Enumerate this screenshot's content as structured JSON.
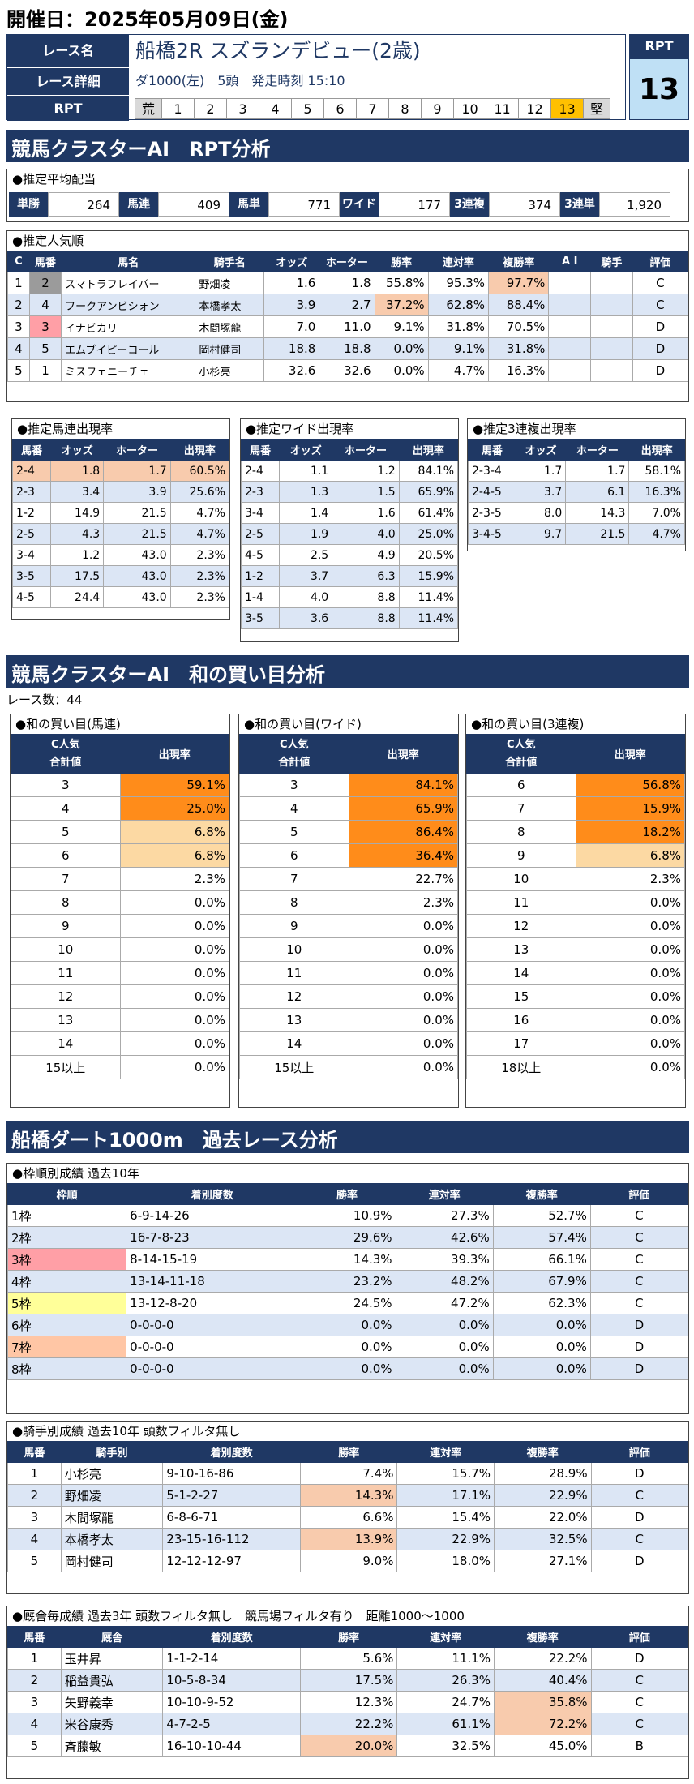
{
  "date_title": "開催日：2025年05月09日(金)",
  "race": {
    "label_name": "レース名",
    "name": "船橋2R スズランデビュー(2歳)",
    "label_detail": "レース詳細",
    "detail": "ダ1000(左)　5頭　発走時刻 15:10",
    "label_rpt": "RPT",
    "rpt_scale": [
      "荒",
      "1",
      "2",
      "3",
      "4",
      "5",
      "6",
      "7",
      "8",
      "9",
      "10",
      "11",
      "12",
      "13",
      "堅"
    ],
    "rpt_label": "RPT",
    "rpt_value": "13"
  },
  "section1": {
    "title": "競馬クラスターAI　RPT分析"
  },
  "payout": {
    "title": "●推定平均配当",
    "items": [
      {
        "k": "単勝",
        "v": "264"
      },
      {
        "k": "馬連",
        "v": "409"
      },
      {
        "k": "馬単",
        "v": "771"
      },
      {
        "k": "ワイド",
        "v": "177"
      },
      {
        "k": "3連複",
        "v": "374"
      },
      {
        "k": "3連単",
        "v": "1,920"
      }
    ]
  },
  "popularity": {
    "title": "●推定人気順",
    "headers": [
      "C",
      "馬番",
      "馬名",
      "騎手名",
      "オッズ",
      "ホーター",
      "勝率",
      "連対率",
      "複勝率",
      "A I",
      "騎手",
      "評価"
    ],
    "rows": [
      [
        "1",
        "2",
        "スマトラフレイバー",
        "野畑凌",
        "1.6",
        "1.8",
        "55.8%",
        "95.3%",
        "97.7%",
        "",
        "",
        "C"
      ],
      [
        "2",
        "4",
        "フークアンビシォン",
        "本橋孝太",
        "3.9",
        "2.7",
        "37.2%",
        "62.8%",
        "88.4%",
        "",
        "",
        "C"
      ],
      [
        "3",
        "3",
        "イナビカリ",
        "木間塚龍",
        "7.0",
        "11.0",
        "9.1%",
        "31.8%",
        "70.5%",
        "",
        "",
        "D"
      ],
      [
        "4",
        "5",
        "エムブイピーコール",
        "岡村健司",
        "18.8",
        "18.8",
        "0.0%",
        "9.1%",
        "31.8%",
        "",
        "",
        "D"
      ],
      [
        "5",
        "1",
        "ミスフェニーチェ",
        "小杉亮",
        "32.6",
        "32.6",
        "0.0%",
        "4.7%",
        "16.3%",
        "",
        "",
        "D"
      ]
    ]
  },
  "umaren": {
    "title": "●推定馬連出現率",
    "headers": [
      "馬番",
      "オッズ",
      "ホーター",
      "出現率"
    ],
    "rows": [
      [
        "2-4",
        "1.8",
        "1.7",
        "60.5%"
      ],
      [
        "2-3",
        "3.4",
        "3.9",
        "25.6%"
      ],
      [
        "1-2",
        "14.9",
        "21.5",
        "4.7%"
      ],
      [
        "2-5",
        "4.3",
        "21.5",
        "4.7%"
      ],
      [
        "3-4",
        "1.2",
        "43.0",
        "2.3%"
      ],
      [
        "3-5",
        "17.5",
        "43.0",
        "2.3%"
      ],
      [
        "4-5",
        "24.4",
        "43.0",
        "2.3%"
      ]
    ]
  },
  "wide": {
    "title": "●推定ワイド出現率",
    "headers": [
      "馬番",
      "オッズ",
      "ホーター",
      "出現率"
    ],
    "rows": [
      [
        "2-4",
        "1.1",
        "1.2",
        "84.1%"
      ],
      [
        "2-3",
        "1.3",
        "1.5",
        "65.9%"
      ],
      [
        "3-4",
        "1.4",
        "1.6",
        "61.4%"
      ],
      [
        "2-5",
        "1.9",
        "4.0",
        "25.0%"
      ],
      [
        "4-5",
        "2.5",
        "4.9",
        "20.5%"
      ],
      [
        "1-2",
        "3.7",
        "6.3",
        "15.9%"
      ],
      [
        "1-4",
        "4.0",
        "8.8",
        "11.4%"
      ],
      [
        "3-5",
        "3.6",
        "8.8",
        "11.4%"
      ]
    ]
  },
  "trio": {
    "title": "●推定3連複出現率",
    "headers": [
      "馬番",
      "オッズ",
      "ホーター",
      "出現率"
    ],
    "rows": [
      [
        "2-3-4",
        "1.7",
        "1.7",
        "58.1%"
      ],
      [
        "2-4-5",
        "3.7",
        "6.1",
        "16.3%"
      ],
      [
        "2-3-5",
        "8.0",
        "14.3",
        "7.0%"
      ],
      [
        "3-4-5",
        "9.7",
        "21.5",
        "4.7%"
      ]
    ]
  },
  "section2": {
    "title": "競馬クラスターAI　和の買い目分析",
    "race_count": "レース数：44"
  },
  "sum_umaren": {
    "title": "●和の買い目(馬連)",
    "h1": "C人気",
    "h2": "合計値",
    "h3": "出現率",
    "rows": [
      [
        "3",
        "59.1%"
      ],
      [
        "4",
        "25.0%"
      ],
      [
        "5",
        "6.8%"
      ],
      [
        "6",
        "6.8%"
      ],
      [
        "7",
        "2.3%"
      ],
      [
        "8",
        "0.0%"
      ],
      [
        "9",
        "0.0%"
      ],
      [
        "10",
        "0.0%"
      ],
      [
        "11",
        "0.0%"
      ],
      [
        "12",
        "0.0%"
      ],
      [
        "13",
        "0.0%"
      ],
      [
        "14",
        "0.0%"
      ],
      [
        "15以上",
        "0.0%"
      ]
    ]
  },
  "sum_wide": {
    "title": "●和の買い目(ワイド)",
    "h1": "C人気",
    "h2": "合計値",
    "h3": "出現率",
    "rows": [
      [
        "3",
        "84.1%"
      ],
      [
        "4",
        "65.9%"
      ],
      [
        "5",
        "86.4%"
      ],
      [
        "6",
        "36.4%"
      ],
      [
        "7",
        "22.7%"
      ],
      [
        "8",
        "2.3%"
      ],
      [
        "9",
        "0.0%"
      ],
      [
        "10",
        "0.0%"
      ],
      [
        "11",
        "0.0%"
      ],
      [
        "12",
        "0.0%"
      ],
      [
        "13",
        "0.0%"
      ],
      [
        "14",
        "0.0%"
      ],
      [
        "15以上",
        "0.0%"
      ]
    ]
  },
  "sum_trio": {
    "title": "●和の買い目(3連複)",
    "h1": "C人気",
    "h2": "合計値",
    "h3": "出現率",
    "rows": [
      [
        "6",
        "56.8%"
      ],
      [
        "7",
        "15.9%"
      ],
      [
        "8",
        "18.2%"
      ],
      [
        "9",
        "6.8%"
      ],
      [
        "10",
        "2.3%"
      ],
      [
        "11",
        "0.0%"
      ],
      [
        "12",
        "0.0%"
      ],
      [
        "13",
        "0.0%"
      ],
      [
        "14",
        "0.0%"
      ],
      [
        "15",
        "0.0%"
      ],
      [
        "16",
        "0.0%"
      ],
      [
        "17",
        "0.0%"
      ],
      [
        "18以上",
        "0.0%"
      ]
    ]
  },
  "section3": {
    "title": "船橋ダート1000m　過去レース分析"
  },
  "waku": {
    "title": "●枠順別成績 過去10年",
    "headers": [
      "枠順",
      "着別度数",
      "勝率",
      "連対率",
      "複勝率",
      "評価"
    ],
    "rows": [
      [
        "1枠",
        "6-9-14-26",
        "10.9%",
        "27.3%",
        "52.7%",
        "C"
      ],
      [
        "2枠",
        "16-7-8-23",
        "29.6%",
        "42.6%",
        "57.4%",
        "C"
      ],
      [
        "3枠",
        "8-14-15-19",
        "14.3%",
        "39.3%",
        "66.1%",
        "C"
      ],
      [
        "4枠",
        "13-14-11-18",
        "23.2%",
        "48.2%",
        "67.9%",
        "C"
      ],
      [
        "5枠",
        "13-12-8-20",
        "24.5%",
        "47.2%",
        "62.3%",
        "C"
      ],
      [
        "6枠",
        "0-0-0-0",
        "0.0%",
        "0.0%",
        "0.0%",
        "D"
      ],
      [
        "7枠",
        "0-0-0-0",
        "0.0%",
        "0.0%",
        "0.0%",
        "D"
      ],
      [
        "8枠",
        "0-0-0-0",
        "0.0%",
        "0.0%",
        "0.0%",
        "D"
      ]
    ]
  },
  "jockey": {
    "title": "●騎手別成績 過去10年 頭数フィルタ無し",
    "headers": [
      "馬番",
      "騎手別",
      "着別度数",
      "勝率",
      "連対率",
      "複勝率",
      "評価"
    ],
    "rows": [
      [
        "1",
        "小杉亮",
        "9-10-16-86",
        "7.4%",
        "15.7%",
        "28.9%",
        "D"
      ],
      [
        "2",
        "野畑凌",
        "5-1-2-27",
        "14.3%",
        "17.1%",
        "22.9%",
        "C"
      ],
      [
        "3",
        "木間塚龍",
        "6-8-6-71",
        "6.6%",
        "15.4%",
        "22.0%",
        "D"
      ],
      [
        "4",
        "本橋孝太",
        "23-15-16-112",
        "13.9%",
        "22.9%",
        "32.5%",
        "C"
      ],
      [
        "5",
        "岡村健司",
        "12-12-12-97",
        "9.0%",
        "18.0%",
        "27.1%",
        "D"
      ]
    ]
  },
  "trainer": {
    "title": "●厩舎毎成績 過去3年 頭数フィルタ無し　競馬場フィルタ有り　距離1000～1000",
    "headers": [
      "馬番",
      "厩舎",
      "着別度数",
      "勝率",
      "連対率",
      "複勝率",
      "評価"
    ],
    "rows": [
      [
        "1",
        "玉井昇",
        "1-1-2-14",
        "5.6%",
        "11.1%",
        "22.2%",
        "D"
      ],
      [
        "2",
        "稲益貴弘",
        "10-5-8-34",
        "17.5%",
        "26.3%",
        "40.4%",
        "C"
      ],
      [
        "3",
        "矢野義幸",
        "10-10-9-52",
        "12.3%",
        "24.7%",
        "35.8%",
        "C"
      ],
      [
        "4",
        "米谷康秀",
        "4-7-2-5",
        "22.2%",
        "61.1%",
        "72.2%",
        "C"
      ],
      [
        "5",
        "斉藤敏",
        "16-10-10-44",
        "20.0%",
        "32.5%",
        "45.0%",
        "B"
      ]
    ]
  }
}
